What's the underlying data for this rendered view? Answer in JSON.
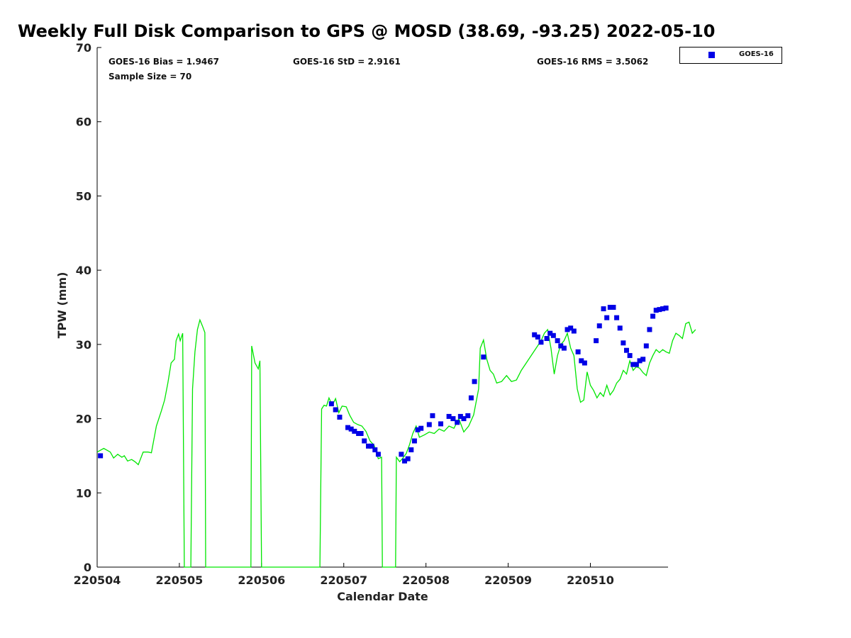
{
  "chart_data": {
    "type": "scatter",
    "title": "Weekly Full Disk Comparison to GPS @ MOSD (38.69, -93.25) 2022-05-10",
    "xlabel": "Calendar Date",
    "ylabel": "TPW (mm)",
    "xlim": [
      0,
      7
    ],
    "ylim": [
      0,
      70
    ],
    "yticks": [
      0,
      10,
      20,
      30,
      40,
      50,
      60,
      70
    ],
    "xticks": [
      {
        "value": 0,
        "label": "220504"
      },
      {
        "value": 1,
        "label": "220505"
      },
      {
        "value": 2,
        "label": "220506"
      },
      {
        "value": 3,
        "label": "220507"
      },
      {
        "value": 4,
        "label": "220508"
      },
      {
        "value": 5,
        "label": "220509"
      },
      {
        "value": 6,
        "label": "220510"
      }
    ],
    "stats": {
      "bias": "GOES-16 Bias = 1.9467",
      "std": "GOES-16 StD = 2.9161",
      "rms": "GOES-16 RMS = 3.5062",
      "sample": "Sample Size = 70"
    },
    "legend": [
      {
        "name": "GOES-16",
        "color": "#0000e6",
        "marker": "square"
      }
    ],
    "series": [
      {
        "name": "GPS",
        "type": "line",
        "color": "#00e600",
        "points": [
          [
            0.0,
            15.5
          ],
          [
            0.08,
            16.0
          ],
          [
            0.16,
            15.5
          ],
          [
            0.2,
            14.7
          ],
          [
            0.25,
            15.2
          ],
          [
            0.3,
            14.8
          ],
          [
            0.33,
            15.0
          ],
          [
            0.37,
            14.3
          ],
          [
            0.42,
            14.5
          ],
          [
            0.46,
            14.2
          ],
          [
            0.5,
            13.8
          ],
          [
            0.56,
            15.5
          ],
          [
            0.62,
            15.5
          ],
          [
            0.66,
            15.4
          ],
          [
            0.72,
            19.0
          ],
          [
            0.78,
            21.0
          ],
          [
            0.82,
            22.5
          ],
          [
            0.86,
            24.8
          ],
          [
            0.9,
            27.5
          ],
          [
            0.94,
            28.0
          ],
          [
            0.96,
            30.5
          ],
          [
            0.99,
            31.4
          ],
          [
            1.01,
            30.5
          ],
          [
            1.04,
            31.5
          ],
          [
            1.06,
            0
          ],
          [
            1.14,
            0
          ],
          [
            1.16,
            24.0
          ],
          [
            1.19,
            29.0
          ],
          [
            1.22,
            32.0
          ],
          [
            1.25,
            33.3
          ],
          [
            1.28,
            32.5
          ],
          [
            1.31,
            31.6
          ],
          [
            1.32,
            0
          ],
          [
            1.87,
            0
          ],
          [
            1.88,
            29.8
          ],
          [
            1.92,
            27.5
          ],
          [
            1.96,
            26.7
          ],
          [
            1.98,
            27.8
          ],
          [
            2.0,
            0
          ],
          [
            2.71,
            0
          ],
          [
            2.73,
            21.3
          ],
          [
            2.76,
            21.8
          ],
          [
            2.79,
            21.7
          ],
          [
            2.82,
            22.8
          ],
          [
            2.86,
            21.8
          ],
          [
            2.9,
            22.7
          ],
          [
            2.94,
            20.8
          ],
          [
            2.98,
            21.7
          ],
          [
            3.03,
            21.6
          ],
          [
            3.07,
            20.5
          ],
          [
            3.12,
            19.5
          ],
          [
            3.17,
            19.2
          ],
          [
            3.22,
            19.0
          ],
          [
            3.27,
            18.3
          ],
          [
            3.32,
            17.0
          ],
          [
            3.37,
            16.4
          ],
          [
            3.42,
            14.6
          ],
          [
            3.46,
            14.8
          ],
          [
            3.47,
            0
          ],
          [
            3.63,
            0
          ],
          [
            3.64,
            14.8
          ],
          [
            3.68,
            14.2
          ],
          [
            3.72,
            14.7
          ],
          [
            3.76,
            15.3
          ],
          [
            3.8,
            16.5
          ],
          [
            3.84,
            18.0
          ],
          [
            3.88,
            19.0
          ],
          [
            3.92,
            17.5
          ],
          [
            3.98,
            17.8
          ],
          [
            4.04,
            18.2
          ],
          [
            4.1,
            18.0
          ],
          [
            4.16,
            18.6
          ],
          [
            4.22,
            18.3
          ],
          [
            4.28,
            19.0
          ],
          [
            4.34,
            18.7
          ],
          [
            4.4,
            20.0
          ],
          [
            4.46,
            18.2
          ],
          [
            4.52,
            19.0
          ],
          [
            4.58,
            20.5
          ],
          [
            4.64,
            24.0
          ],
          [
            4.66,
            29.5
          ],
          [
            4.7,
            30.6
          ],
          [
            4.74,
            28.0
          ],
          [
            4.78,
            26.5
          ],
          [
            4.82,
            26.0
          ],
          [
            4.86,
            24.8
          ],
          [
            4.92,
            25.0
          ],
          [
            4.98,
            25.8
          ],
          [
            5.04,
            25.0
          ],
          [
            5.1,
            25.2
          ],
          [
            5.16,
            26.5
          ],
          [
            5.22,
            27.5
          ],
          [
            5.28,
            28.5
          ],
          [
            5.34,
            29.5
          ],
          [
            5.4,
            30.5
          ],
          [
            5.44,
            31.5
          ],
          [
            5.48,
            32.0
          ],
          [
            5.52,
            29.5
          ],
          [
            5.56,
            26.0
          ],
          [
            5.6,
            28.5
          ],
          [
            5.64,
            30.0
          ],
          [
            5.68,
            30.5
          ],
          [
            5.72,
            31.5
          ],
          [
            5.76,
            29.5
          ],
          [
            5.8,
            28.5
          ],
          [
            5.84,
            24.0
          ],
          [
            5.88,
            22.2
          ],
          [
            5.92,
            22.5
          ],
          [
            5.96,
            26.3
          ],
          [
            6.0,
            24.5
          ],
          [
            6.04,
            23.8
          ],
          [
            6.08,
            22.8
          ],
          [
            6.12,
            23.5
          ],
          [
            6.16,
            23.0
          ],
          [
            6.2,
            24.5
          ],
          [
            6.24,
            23.2
          ],
          [
            6.28,
            23.8
          ],
          [
            6.32,
            24.8
          ],
          [
            6.36,
            25.3
          ],
          [
            6.4,
            26.5
          ],
          [
            6.44,
            26.0
          ],
          [
            6.48,
            27.8
          ],
          [
            6.52,
            26.5
          ],
          [
            6.56,
            27.0
          ],
          [
            6.6,
            26.8
          ],
          [
            6.64,
            26.2
          ],
          [
            6.68,
            25.8
          ],
          [
            6.72,
            27.5
          ],
          [
            6.76,
            28.5
          ],
          [
            6.8,
            29.3
          ],
          [
            6.84,
            28.9
          ],
          [
            6.88,
            29.3
          ],
          [
            6.92,
            29.0
          ],
          [
            6.96,
            28.8
          ],
          [
            7.0,
            30.5
          ],
          [
            7.04,
            31.5
          ],
          [
            7.08,
            31.2
          ],
          [
            7.12,
            30.8
          ],
          [
            7.16,
            32.8
          ],
          [
            7.2,
            33.0
          ],
          [
            7.24,
            31.5
          ],
          [
            7.28,
            32.0
          ]
        ]
      },
      {
        "name": "GOES-16",
        "type": "scatter",
        "color": "#0000e6",
        "points": [
          [
            0.04,
            15.0
          ],
          [
            2.85,
            22.0
          ],
          [
            2.9,
            21.2
          ],
          [
            2.95,
            20.2
          ],
          [
            3.05,
            18.8
          ],
          [
            3.09,
            18.6
          ],
          [
            3.13,
            18.3
          ],
          [
            3.18,
            18.0
          ],
          [
            3.21,
            18.0
          ],
          [
            3.25,
            17.0
          ],
          [
            3.3,
            16.3
          ],
          [
            3.34,
            16.3
          ],
          [
            3.38,
            15.8
          ],
          [
            3.42,
            15.2
          ],
          [
            3.7,
            15.2
          ],
          [
            3.74,
            14.3
          ],
          [
            3.78,
            14.6
          ],
          [
            3.82,
            15.8
          ],
          [
            3.86,
            17.0
          ],
          [
            3.9,
            18.5
          ],
          [
            3.94,
            18.7
          ],
          [
            4.04,
            19.2
          ],
          [
            4.08,
            20.4
          ],
          [
            4.18,
            19.3
          ],
          [
            4.28,
            20.3
          ],
          [
            4.33,
            20.0
          ],
          [
            4.38,
            19.5
          ],
          [
            4.42,
            20.3
          ],
          [
            4.46,
            20.0
          ],
          [
            4.51,
            20.4
          ],
          [
            4.55,
            22.8
          ],
          [
            4.59,
            25.0
          ],
          [
            4.7,
            28.3
          ],
          [
            5.32,
            31.3
          ],
          [
            5.36,
            31.0
          ],
          [
            5.4,
            30.3
          ],
          [
            5.47,
            30.8
          ],
          [
            5.51,
            31.5
          ],
          [
            5.55,
            31.2
          ],
          [
            5.6,
            30.5
          ],
          [
            5.64,
            29.8
          ],
          [
            5.68,
            29.5
          ],
          [
            5.72,
            32.0
          ],
          [
            5.76,
            32.2
          ],
          [
            5.8,
            31.8
          ],
          [
            5.85,
            29.0
          ],
          [
            5.89,
            27.8
          ],
          [
            5.93,
            27.5
          ],
          [
            6.07,
            30.5
          ],
          [
            6.11,
            32.5
          ],
          [
            6.16,
            34.8
          ],
          [
            6.2,
            33.6
          ],
          [
            6.24,
            35.0
          ],
          [
            6.28,
            35.0
          ],
          [
            6.32,
            33.6
          ],
          [
            6.36,
            32.2
          ],
          [
            6.4,
            30.2
          ],
          [
            6.44,
            29.2
          ],
          [
            6.48,
            28.5
          ],
          [
            6.52,
            27.3
          ],
          [
            6.56,
            27.3
          ],
          [
            6.6,
            27.8
          ],
          [
            6.64,
            28.0
          ],
          [
            6.68,
            29.8
          ],
          [
            6.72,
            32.0
          ],
          [
            6.76,
            33.8
          ],
          [
            6.8,
            34.6
          ],
          [
            6.84,
            34.7
          ],
          [
            6.88,
            34.8
          ],
          [
            6.92,
            34.9
          ]
        ]
      }
    ]
  }
}
